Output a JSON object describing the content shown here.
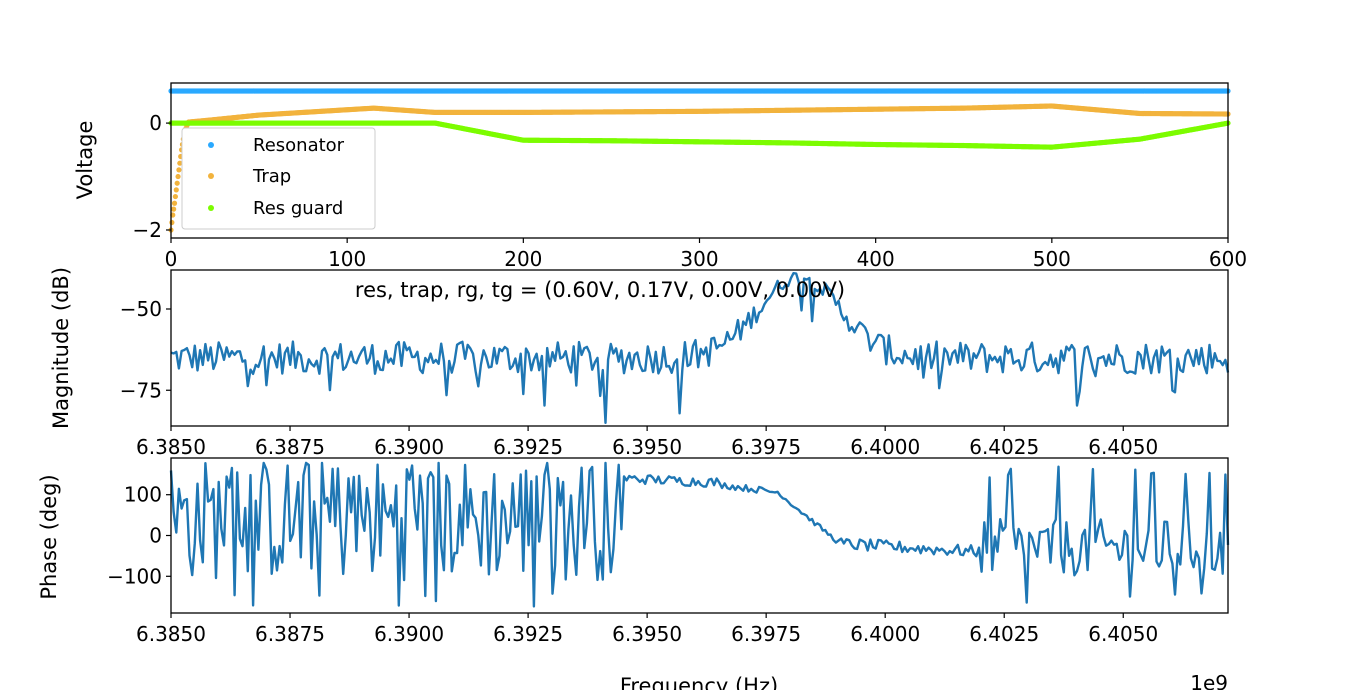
{
  "chart_data": [
    {
      "type": "scatter",
      "ylabel": "Voltage",
      "xlim": [
        0,
        600
      ],
      "ylim": [
        -2.15,
        0.75
      ],
      "x_ticks": [
        0,
        100,
        200,
        300,
        400,
        500,
        600
      ],
      "y_ticks": [
        -2,
        0
      ],
      "x_tick_labels": [
        "0",
        "100",
        "200",
        "300",
        "400",
        "500",
        "600"
      ],
      "y_tick_labels": [
        "−2",
        "0"
      ],
      "legend_position": "lower-left",
      "grid": false,
      "series": [
        {
          "name": "Resonator",
          "color": "#2aa9ff",
          "x": [
            0,
            600
          ],
          "y": [
            0.6,
            0.6
          ]
        },
        {
          "name": "Trap",
          "color": "#f2b33d",
          "x": [
            0,
            1,
            2,
            3,
            4,
            5,
            6,
            7,
            8,
            9,
            10,
            20,
            50,
            100,
            115,
            150,
            200,
            300,
            400,
            450,
            500,
            550,
            600
          ],
          "y": [
            -2.0,
            -1.72,
            -1.5,
            -1.25,
            -1.0,
            -0.75,
            -0.5,
            -0.3,
            -0.15,
            -0.05,
            0.02,
            0.05,
            0.15,
            0.25,
            0.28,
            0.2,
            0.2,
            0.22,
            0.26,
            0.28,
            0.32,
            0.18,
            0.17
          ]
        },
        {
          "name": "Res guard",
          "color": "#7cfc00",
          "x": [
            0,
            50,
            100,
            150,
            200,
            250,
            300,
            350,
            400,
            450,
            500,
            550,
            600
          ],
          "y": [
            0.0,
            0.0,
            0.0,
            0.0,
            -0.32,
            -0.33,
            -0.35,
            -0.37,
            -0.4,
            -0.42,
            -0.45,
            -0.3,
            0.0
          ]
        }
      ]
    },
    {
      "type": "line",
      "title": "res, trap, rg, tg = (0.60V, 0.17V, 0.00V, 0.00V)",
      "ylabel": "Magnitude (dB)",
      "xlim": [
        6.385,
        6.4072
      ],
      "ylim": [
        -86,
        -38
      ],
      "x_ticks": [
        6.385,
        6.3875,
        6.39,
        6.3925,
        6.395,
        6.3975,
        6.4,
        6.4025,
        6.405
      ],
      "x_tick_labels": [
        "6.3850",
        "6.3875",
        "6.3900",
        "6.3925",
        "6.3950",
        "6.3975",
        "6.4000",
        "6.4025",
        "6.4050"
      ],
      "y_ticks": [
        -50,
        -75
      ],
      "y_tick_labels": [
        "−50",
        "−75"
      ],
      "series": [
        {
          "color": "#1f77b4",
          "n_points": 400,
          "x_range": [
            6.385,
            6.4072
          ],
          "peak_x": 6.3982,
          "peak_y": -40,
          "baseline_y": -65,
          "noise_db": 5
        }
      ]
    },
    {
      "type": "line",
      "ylabel": "Phase (deg)",
      "xlabel": "Frequency (Hz)",
      "x_offset_label": "1e9",
      "xlim": [
        6.385,
        6.4072
      ],
      "ylim": [
        -190,
        190
      ],
      "x_ticks": [
        6.385,
        6.3875,
        6.39,
        6.3925,
        6.395,
        6.3975,
        6.4,
        6.4025,
        6.405
      ],
      "x_tick_labels": [
        "6.3850",
        "6.3875",
        "6.3900",
        "6.3925",
        "6.3950",
        "6.3975",
        "6.4000",
        "6.4025",
        "6.4050"
      ],
      "y_ticks": [
        100,
        0,
        -100
      ],
      "y_tick_labels": [
        "100",
        "0",
        "−100"
      ],
      "series": [
        {
          "color": "#1f77b4",
          "n_points": 400,
          "x_range": [
            6.385,
            6.4072
          ],
          "segments": [
            {
              "x_from": 6.385,
              "x_to": 6.3945,
              "mode": "noisy",
              "center": 40,
              "spread": 150
            },
            {
              "x_from": 6.3945,
              "x_to": 6.3965,
              "y_from": 140,
              "y_to": 130,
              "noise": 12
            },
            {
              "x_from": 6.3965,
              "x_to": 6.3978,
              "y_from": 125,
              "y_to": 105,
              "noise": 8
            },
            {
              "x_from": 6.3978,
              "x_to": 6.399,
              "y_from": 100,
              "y_to": -15,
              "noise": 6
            },
            {
              "x_from": 6.399,
              "x_to": 6.402,
              "y_from": -20,
              "y_to": -40,
              "noise": 15
            },
            {
              "x_from": 6.402,
              "x_to": 6.4072,
              "mode": "noisy",
              "center": -30,
              "spread": 70
            }
          ]
        }
      ]
    }
  ]
}
